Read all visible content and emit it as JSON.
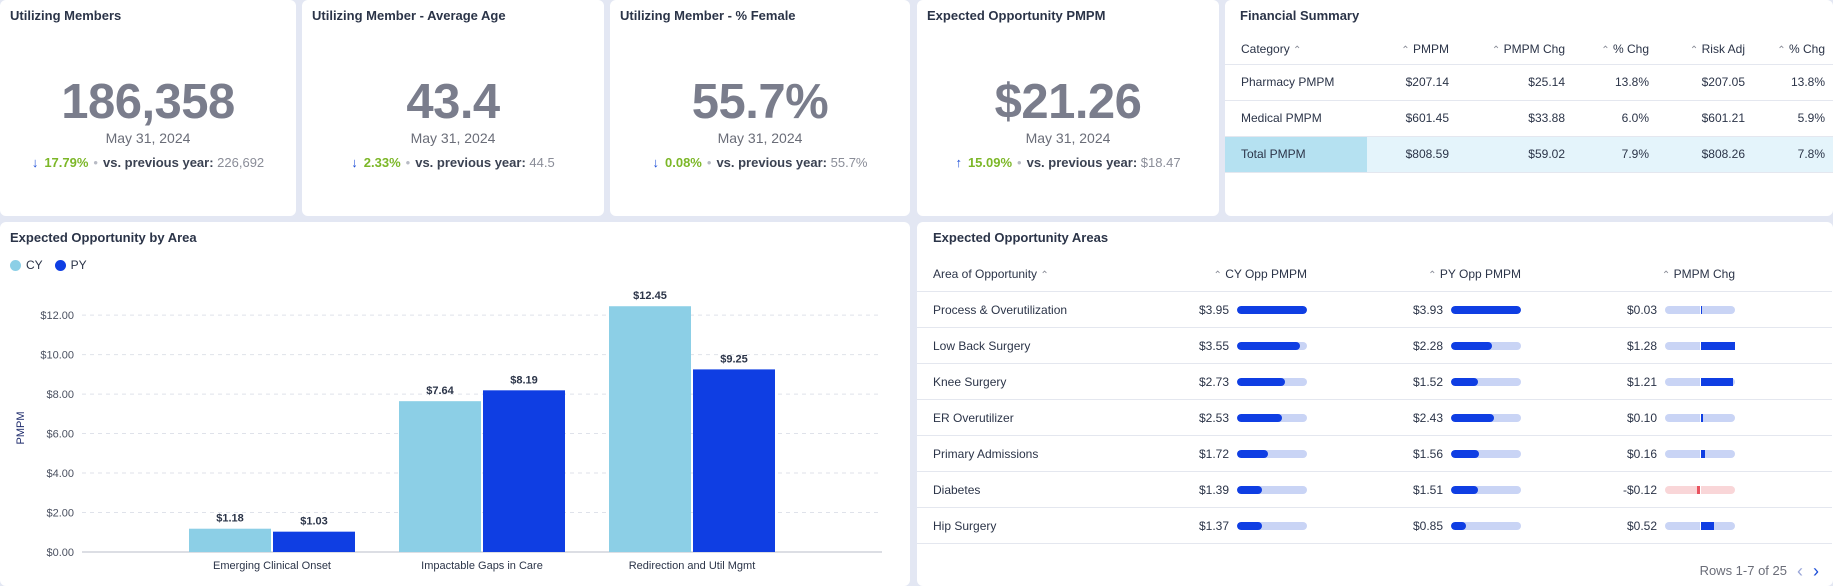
{
  "kpis": [
    {
      "title": "Utilizing Members",
      "value": "186,358",
      "date": "May 31, 2024",
      "arrow": "↓",
      "pct": "17.79%",
      "vs_label": "vs. previous year:",
      "prev": "226,692"
    },
    {
      "title": "Utilizing Member - Average Age",
      "value": "43.4",
      "date": "May 31, 2024",
      "arrow": "↓",
      "pct": "2.33%",
      "vs_label": "vs. previous year:",
      "prev": "44.5"
    },
    {
      "title": "Utilizing Member - % Female",
      "value": "55.7%",
      "date": "May 31, 2024",
      "arrow": "↓",
      "pct": "0.08%",
      "vs_label": "vs. previous year:",
      "prev": "55.7%"
    },
    {
      "title": "Expected Opportunity PMPM",
      "value": "$21.26",
      "date": "May 31, 2024",
      "arrow": "↑",
      "pct": "15.09%",
      "vs_label": "vs. previous year:",
      "prev": "$18.47"
    }
  ],
  "financial": {
    "title": "Financial Summary",
    "columns": [
      "Category",
      "PMPM",
      "PMPM Chg",
      "% Chg",
      "Risk Adj",
      "% Chg"
    ],
    "rows": [
      [
        "Pharmacy PMPM",
        "$207.14",
        "$25.14",
        "13.8%",
        "$207.05",
        "13.8%"
      ],
      [
        "Medical PMPM",
        "$601.45",
        "$33.88",
        "6.0%",
        "$601.21",
        "5.9%"
      ],
      [
        "Total PMPM",
        "$808.59",
        "$59.02",
        "7.9%",
        "$808.26",
        "7.8%"
      ]
    ]
  },
  "chart": {
    "title": "Expected Opportunity by Area",
    "colors": {
      "cy": "#8ccfe6",
      "py": "#0f3ee3"
    }
  },
  "chart_data": {
    "type": "bar",
    "categories": [
      "Emerging Clinical Onset",
      "Impactable Gaps in Care",
      "Redirection and Util Mgmt"
    ],
    "series": [
      {
        "name": "CY",
        "values": [
          1.18,
          7.64,
          12.45
        ],
        "labels": [
          "$1.18",
          "$7.64",
          "$12.45"
        ]
      },
      {
        "name": "PY",
        "values": [
          1.03,
          8.19,
          9.25
        ],
        "labels": [
          "$1.03",
          "$8.19",
          "$9.25"
        ]
      }
    ],
    "ylabel": "PMPM",
    "ylim": [
      0,
      12
    ],
    "yticks": [
      "$0.00",
      "$2.00",
      "$4.00",
      "$6.00",
      "$8.00",
      "$10.00",
      "$12.00"
    ],
    "legend": "top-left",
    "grid": true
  },
  "opp": {
    "title": "Expected Opportunity Areas",
    "columns": [
      "Area of Opportunity",
      "CY Opp PMPM",
      "PY Opp PMPM",
      "PMPM Chg"
    ],
    "rows": [
      {
        "area": "Process & Overutilization",
        "cy": "$3.95",
        "cy_frac": 1.0,
        "py": "$3.93",
        "py_frac": 1.0,
        "chg": "$0.03",
        "chg_frac": 0.02
      },
      {
        "area": "Low Back Surgery",
        "cy": "$3.55",
        "cy_frac": 0.9,
        "py": "$2.28",
        "py_frac": 0.58,
        "chg": "$1.28",
        "chg_frac": 1.0
      },
      {
        "area": "Knee Surgery",
        "cy": "$2.73",
        "cy_frac": 0.69,
        "py": "$1.52",
        "py_frac": 0.39,
        "chg": "$1.21",
        "chg_frac": 0.95
      },
      {
        "area": "ER Overutilizer",
        "cy": "$2.53",
        "cy_frac": 0.64,
        "py": "$2.43",
        "py_frac": 0.62,
        "chg": "$0.10",
        "chg_frac": 0.08
      },
      {
        "area": "Primary Admissions",
        "cy": "$1.72",
        "cy_frac": 0.44,
        "py": "$1.56",
        "py_frac": 0.4,
        "chg": "$0.16",
        "chg_frac": 0.13
      },
      {
        "area": "Diabetes",
        "cy": "$1.39",
        "cy_frac": 0.35,
        "py": "$1.51",
        "py_frac": 0.38,
        "chg": "-$0.12",
        "chg_frac": -0.09
      },
      {
        "area": "Hip Surgery",
        "cy": "$1.37",
        "cy_frac": 0.35,
        "py": "$0.85",
        "py_frac": 0.22,
        "chg": "$0.52",
        "chg_frac": 0.41
      }
    ],
    "pager": "Rows 1-7 of 25"
  }
}
